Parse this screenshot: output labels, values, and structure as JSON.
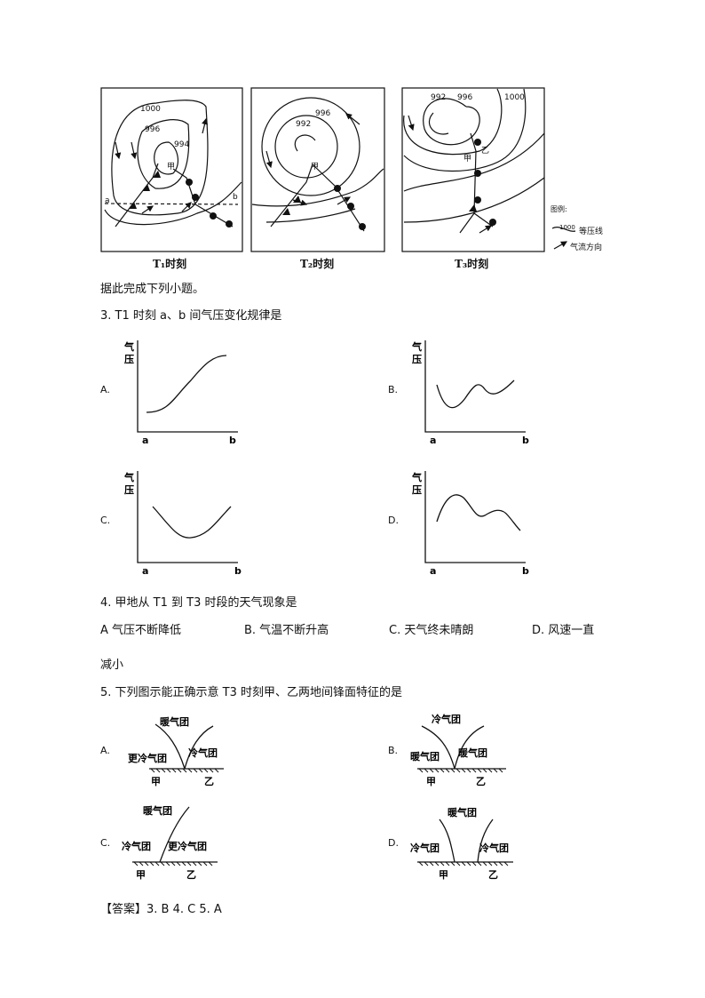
{
  "figure": {
    "panels": [
      {
        "caption": "T₁时刻",
        "isobars": [
          "1000",
          "996",
          "994"
        ],
        "point": "甲",
        "a": "a",
        "b": "b"
      },
      {
        "caption": "T₂时刻",
        "isobars": [
          "996",
          "992"
        ],
        "point": "甲"
      },
      {
        "caption": "T₃时刻",
        "isobars": [
          "992",
          "996",
          "1000"
        ],
        "point_jia": "甲",
        "point_yi": "乙"
      }
    ],
    "legend": {
      "title": "图例:",
      "isobar_value": "1000",
      "isobar_label": "等压线",
      "airflow_label": "气流方向"
    }
  },
  "intro": "据此完成下列小题。",
  "q3": {
    "stem": "3. T1 时刻 a、b 间气压变化规律是",
    "options": [
      {
        "label": "A.",
        "ylabel_1": "气",
        "ylabel_2": "压",
        "x_start": "a",
        "x_end": "b",
        "curve": "rising S-curve"
      },
      {
        "label": "B.",
        "ylabel_1": "气",
        "ylabel_2": "压",
        "x_start": "a",
        "x_end": "b",
        "curve": "dip, bump, rise"
      },
      {
        "label": "C.",
        "ylabel_1": "气",
        "ylabel_2": "压",
        "x_start": "a",
        "x_end": "b",
        "curve": "U-shape"
      },
      {
        "label": "D.",
        "ylabel_1": "气",
        "ylabel_2": "压",
        "x_start": "a",
        "x_end": "b",
        "curve": "peak, dip, peak, fall"
      }
    ]
  },
  "q4": {
    "stem": "4. 甲地从  T1  到  T3 时段的天气现象是",
    "options": [
      "A  气压不断降低",
      "B. 气温不断升高",
      "C. 天气终未晴朗",
      "D. 风速一直"
    ],
    "wrap": "减小"
  },
  "q5": {
    "stem": "5. 下列图示能正确示意 T3 时刻甲、乙两地间锋面特征的是",
    "options": [
      {
        "label": "A.",
        "top": "暖气团",
        "left": "更冷气团",
        "right": "冷气团",
        "ground_left": "甲",
        "ground_right": "乙"
      },
      {
        "label": "B.",
        "top": "冷气团",
        "left": "暖气团",
        "right": "暖气团",
        "ground_left": "甲",
        "ground_right": "乙"
      },
      {
        "label": "C.",
        "top": "暖气团",
        "left": "冷气团",
        "right": "更冷气团",
        "ground_left": "甲",
        "ground_right": "乙"
      },
      {
        "label": "D.",
        "top": "暖气团",
        "left": "冷气团",
        "right": "冷气团",
        "ground_left": "甲",
        "ground_right": "乙"
      }
    ]
  },
  "answer": "【答案】3. B    4. C    5. A"
}
